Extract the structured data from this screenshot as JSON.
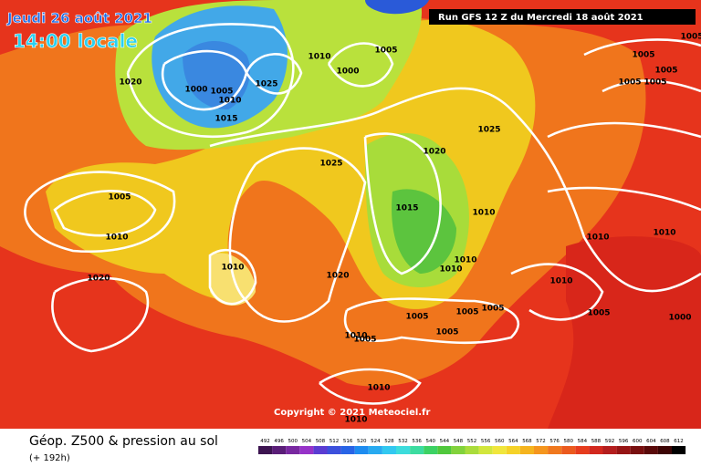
{
  "header": {
    "date": "Jeudi 26 août 2021",
    "time": "14:00 locale",
    "run": "Run GFS 12 Z du Mercredi 18 août 2021"
  },
  "map": {
    "copyright": "Copyright © 2021 Meteociel.fr",
    "isobar_labels": [
      "1020",
      "1000",
      "1005",
      "1010",
      "1025",
      "1010",
      "1005",
      "1000",
      "1015",
      "1025",
      "1020",
      "1025",
      "1005",
      "1010",
      "1015",
      "1010",
      "1010",
      "1020",
      "1020",
      "1010",
      "1010",
      "1005",
      "1005",
      "1005",
      "1005",
      "1005",
      "1010",
      "1010",
      "1010",
      "1010",
      "1010",
      "1010",
      "1005",
      "1000",
      "1005",
      "1005",
      "1005",
      "1005",
      "1005"
    ]
  },
  "footer": {
    "title": "Géop. Z500 & pression au sol",
    "subtitle": "(+ 192h)",
    "colorbar": [
      492,
      496,
      500,
      504,
      508,
      512,
      516,
      520,
      524,
      528,
      532,
      536,
      540,
      544,
      548,
      552,
      556,
      560,
      564,
      568,
      572,
      576,
      580,
      584,
      588,
      592,
      596,
      600,
      604,
      608,
      612
    ]
  }
}
